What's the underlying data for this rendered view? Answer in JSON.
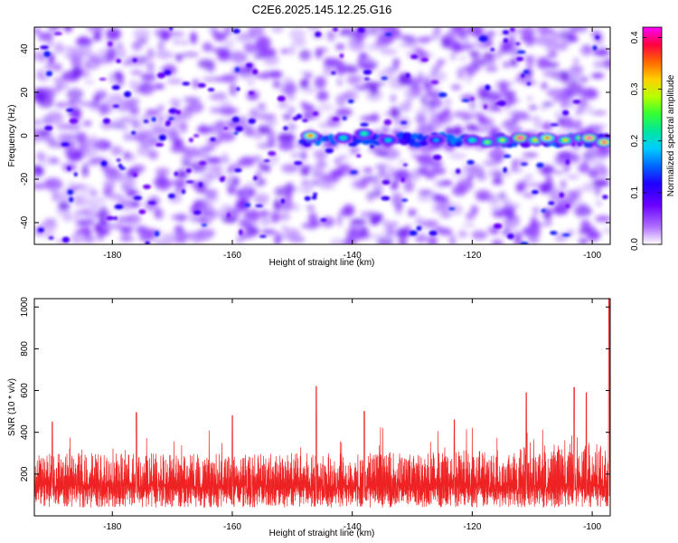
{
  "title": "C2E6.2025.145.12.25.G16",
  "colors": {
    "snr_line": "#ee2222",
    "colormap": [
      "#ffffff",
      "#a040ff",
      "#6a00ff",
      "#1f00ff",
      "#0066ff",
      "#00ccff",
      "#00e6a0",
      "#33ff33",
      "#b6ff00",
      "#ffd000",
      "#ff6600",
      "#ff0040",
      "#ff00ff"
    ]
  },
  "chart_data": [
    {
      "type": "heatmap",
      "xlabel": "Height of straight line (km)",
      "ylabel": "Frequency (Hz)",
      "xlim": [
        -193,
        -97
      ],
      "ylim": [
        -50,
        50
      ],
      "xticks": [
        -180,
        -160,
        -140,
        -120,
        -100
      ],
      "yticks": [
        -40,
        -20,
        0,
        20,
        40
      ],
      "colorbar": {
        "label": "Normalized spectral amplitude",
        "range": [
          0.0,
          0.42
        ],
        "ticks": [
          0.0,
          0.1,
          0.2,
          0.3,
          0.4
        ],
        "tick_labels": [
          "0.0",
          "0.1",
          "0.2",
          "0.3",
          "0.4"
        ]
      },
      "signal_band": {
        "frequency_hz": -2,
        "x_start": -148,
        "x_end": -97,
        "peaks": [
          {
            "x": -147.0,
            "y": 0.0,
            "amp": 0.36
          },
          {
            "x": -141.5,
            "y": -1.0,
            "amp": 0.2
          },
          {
            "x": -138.0,
            "y": 1.0,
            "amp": 0.22
          },
          {
            "x": -134.0,
            "y": -2.0,
            "amp": 0.18
          },
          {
            "x": -126.0,
            "y": -2.0,
            "amp": 0.15
          },
          {
            "x": -120.0,
            "y": -2.0,
            "amp": 0.2
          },
          {
            "x": -117.5,
            "y": -3.0,
            "amp": 0.25
          },
          {
            "x": -115.0,
            "y": -2.0,
            "amp": 0.27
          },
          {
            "x": -112.0,
            "y": -1.0,
            "amp": 0.42
          },
          {
            "x": -109.5,
            "y": -2.0,
            "amp": 0.3
          },
          {
            "x": -107.5,
            "y": -1.0,
            "amp": 0.35
          },
          {
            "x": -104.5,
            "y": -2.0,
            "amp": 0.3
          },
          {
            "x": -102.0,
            "y": -1.0,
            "amp": 0.28
          },
          {
            "x": -100.5,
            "y": -1.0,
            "amp": 0.4
          },
          {
            "x": -98.0,
            "y": -3.0,
            "amp": 0.38
          }
        ]
      }
    },
    {
      "type": "line",
      "xlabel": "Height of straight line (km)",
      "ylabel": "SNR (10 * v/v)",
      "xlim": [
        -193,
        -97
      ],
      "ylim": [
        0,
        1040
      ],
      "xticks": [
        -180,
        -160,
        -140,
        -120,
        -100
      ],
      "yticks": [
        200,
        400,
        600,
        800,
        1000
      ],
      "baseline_range": [
        40,
        300
      ],
      "peaks": [
        {
          "x": -190.0,
          "y": 450
        },
        {
          "x": -176.0,
          "y": 495
        },
        {
          "x": -160.0,
          "y": 480
        },
        {
          "x": -146.0,
          "y": 620
        },
        {
          "x": -138.0,
          "y": 500
        },
        {
          "x": -123.0,
          "y": 460
        },
        {
          "x": -111.0,
          "y": 590
        },
        {
          "x": -103.0,
          "y": 615
        },
        {
          "x": -101.0,
          "y": 590
        },
        {
          "x": -97.2,
          "y": 1040
        }
      ]
    }
  ]
}
